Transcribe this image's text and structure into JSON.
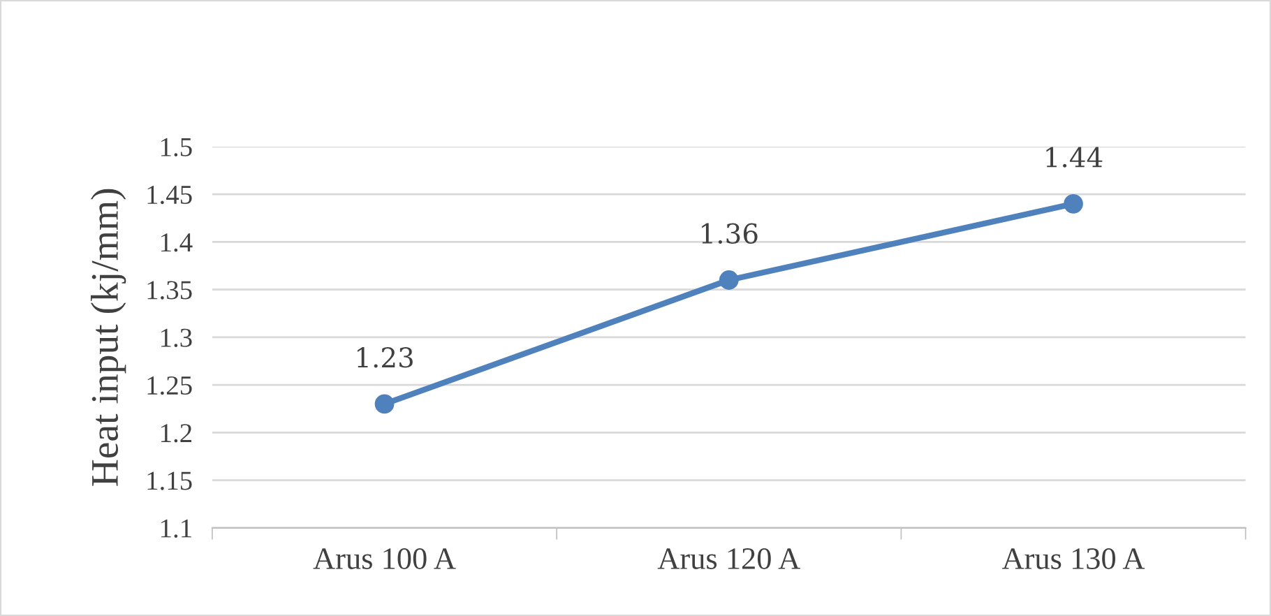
{
  "chart_data": {
    "type": "line",
    "ylabel": "Heat input (kj/mm)",
    "categories": [
      "Arus 100 A",
      "Arus 120 A",
      "Arus 130 A"
    ],
    "series": [
      {
        "color": "#4f81bd",
        "values": [
          1.23,
          1.36,
          1.44
        ]
      }
    ],
    "ylim": [
      1.1,
      1.5
    ],
    "yticks": [
      1.1,
      1.15,
      1.2,
      1.25,
      1.3,
      1.35,
      1.4,
      1.45,
      1.5
    ],
    "grid": "y",
    "marker": "circle",
    "line_style": "solid",
    "data_labels": true
  }
}
